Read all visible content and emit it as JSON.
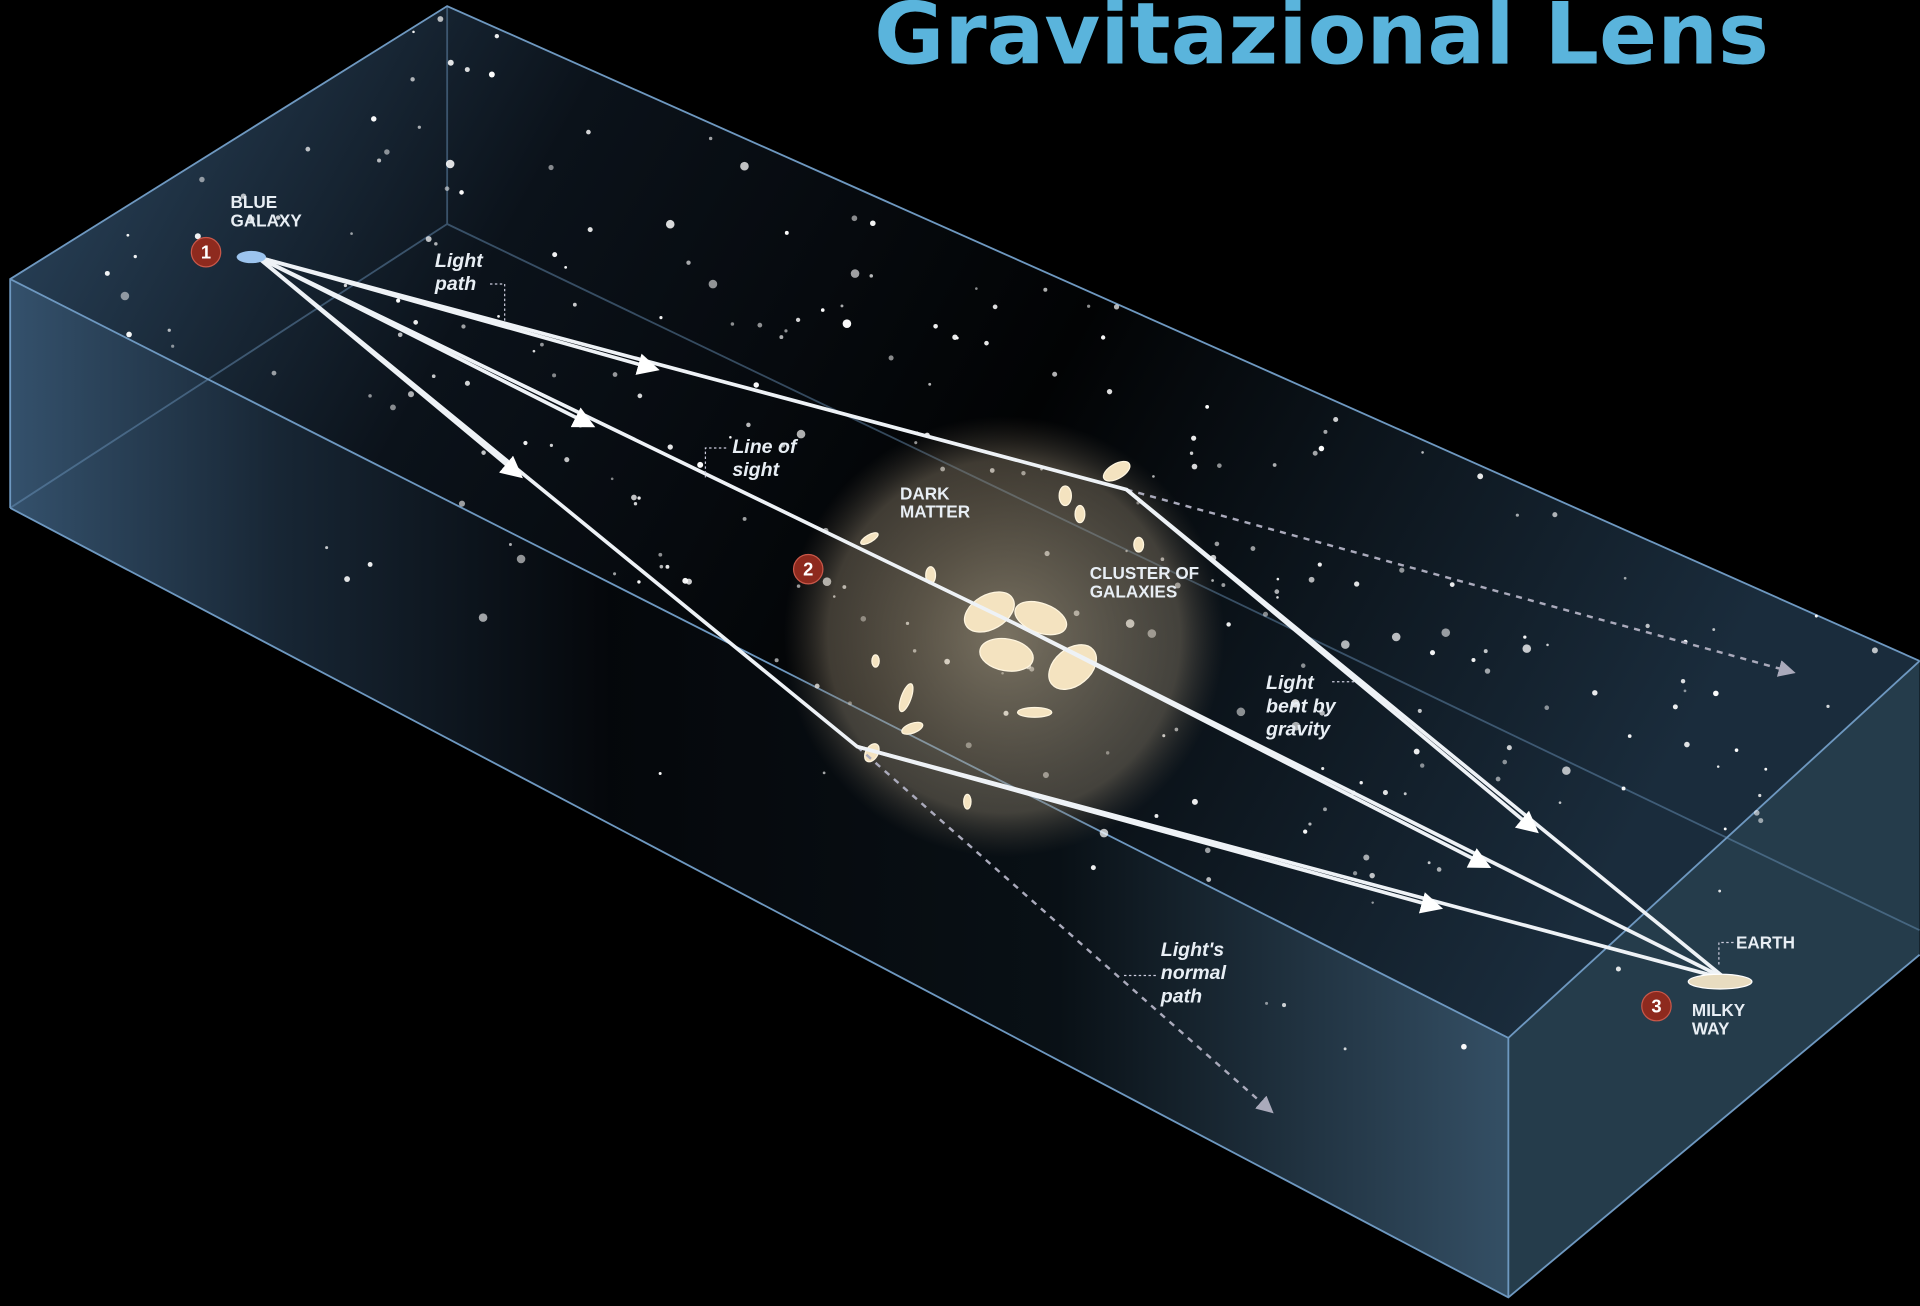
{
  "title": "Gravitazional Lens",
  "labels": {
    "blue_galaxy": [
      "BLUE",
      "GALAXY"
    ],
    "light_path": [
      "Light",
      "path"
    ],
    "line_of_sight": [
      "Line of",
      "sight"
    ],
    "dark_matter": [
      "DARK",
      "MATTER"
    ],
    "cluster": [
      "CLUSTER OF",
      "GALAXIES"
    ],
    "light_bent": [
      "Light",
      "bent by",
      "gravity"
    ],
    "normal_path": [
      "Light's",
      "normal",
      "path"
    ],
    "earth": [
      "EARTH"
    ],
    "milky_way": [
      "MILKY",
      "WAY"
    ]
  },
  "markers": [
    "1",
    "2",
    "3"
  ]
}
